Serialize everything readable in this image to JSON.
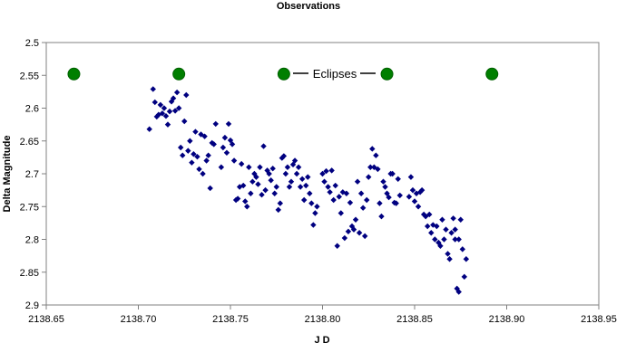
{
  "chart_data": {
    "type": "scatter",
    "title": "Observations",
    "xlabel": "J D",
    "ylabel": "Delta Magnitude",
    "xlim": [
      2138.65,
      2138.95
    ],
    "ylim": [
      2.5,
      2.9
    ],
    "y_inverted": true,
    "x_ticks": [
      "2138.65",
      "2138.70",
      "2138.75",
      "2138.80",
      "2138.85",
      "2138.90",
      "2138.95"
    ],
    "y_ticks": [
      "2.5",
      "2.55",
      "2.6",
      "2.65",
      "2.7",
      "2.75",
      "2.8",
      "2.85",
      "2.9"
    ],
    "annotation": "Eclipses",
    "colors": {
      "observations": "#000080",
      "eclipses": "#007f00",
      "eclipse_outline": "#006000"
    },
    "series": [
      {
        "marker": "diamond",
        "points": [
          [
            2138.706,
            2.632
          ],
          [
            2138.708,
            2.571
          ],
          [
            2138.709,
            2.591
          ],
          [
            2138.71,
            2.613
          ],
          [
            2138.711,
            2.61
          ],
          [
            2138.712,
            2.595
          ],
          [
            2138.713,
            2.608
          ],
          [
            2138.714,
            2.6
          ],
          [
            2138.715,
            2.612
          ],
          [
            2138.716,
            2.625
          ],
          [
            2138.717,
            2.605
          ],
          [
            2138.718,
            2.59
          ],
          [
            2138.719,
            2.585
          ],
          [
            2138.72,
            2.604
          ],
          [
            2138.721,
            2.576
          ],
          [
            2138.722,
            2.6
          ],
          [
            2138.723,
            2.66
          ],
          [
            2138.724,
            2.672
          ],
          [
            2138.725,
            2.62
          ],
          [
            2138.726,
            2.58
          ],
          [
            2138.727,
            2.665
          ],
          [
            2138.728,
            2.65
          ],
          [
            2138.729,
            2.683
          ],
          [
            2138.73,
            2.67
          ],
          [
            2138.731,
            2.636
          ],
          [
            2138.732,
            2.674
          ],
          [
            2138.733,
            2.693
          ],
          [
            2138.734,
            2.64
          ],
          [
            2138.735,
            2.7
          ],
          [
            2138.736,
            2.643
          ],
          [
            2138.737,
            2.68
          ],
          [
            2138.738,
            2.672
          ],
          [
            2138.739,
            2.722
          ],
          [
            2138.74,
            2.653
          ],
          [
            2138.741,
            2.655
          ],
          [
            2138.742,
            2.624
          ],
          [
            2138.745,
            2.69
          ],
          [
            2138.746,
            2.66
          ],
          [
            2138.747,
            2.645
          ],
          [
            2138.748,
            2.668
          ],
          [
            2138.749,
            2.624
          ],
          [
            2138.75,
            2.649
          ],
          [
            2138.751,
            2.655
          ],
          [
            2138.752,
            2.68
          ],
          [
            2138.753,
            2.74
          ],
          [
            2138.754,
            2.738
          ],
          [
            2138.755,
            2.72
          ],
          [
            2138.756,
            2.685
          ],
          [
            2138.757,
            2.718
          ],
          [
            2138.758,
            2.742
          ],
          [
            2138.759,
            2.75
          ],
          [
            2138.76,
            2.69
          ],
          [
            2138.761,
            2.73
          ],
          [
            2138.762,
            2.712
          ],
          [
            2138.763,
            2.7
          ],
          [
            2138.764,
            2.705
          ],
          [
            2138.765,
            2.716
          ],
          [
            2138.766,
            2.69
          ],
          [
            2138.767,
            2.732
          ],
          [
            2138.768,
            2.658
          ],
          [
            2138.769,
            2.725
          ],
          [
            2138.77,
            2.695
          ],
          [
            2138.771,
            2.7
          ],
          [
            2138.772,
            2.71
          ],
          [
            2138.773,
            2.692
          ],
          [
            2138.774,
            2.73
          ],
          [
            2138.775,
            2.72
          ],
          [
            2138.776,
            2.755
          ],
          [
            2138.777,
            2.745
          ],
          [
            2138.778,
            2.676
          ],
          [
            2138.779,
            2.673
          ],
          [
            2138.78,
            2.7
          ],
          [
            2138.781,
            2.69
          ],
          [
            2138.782,
            2.72
          ],
          [
            2138.783,
            2.712
          ],
          [
            2138.784,
            2.686
          ],
          [
            2138.785,
            2.68
          ],
          [
            2138.786,
            2.7
          ],
          [
            2138.787,
            2.69
          ],
          [
            2138.788,
            2.72
          ],
          [
            2138.789,
            2.708
          ],
          [
            2138.79,
            2.74
          ],
          [
            2138.791,
            2.718
          ],
          [
            2138.792,
            2.705
          ],
          [
            2138.793,
            2.73
          ],
          [
            2138.794,
            2.745
          ],
          [
            2138.795,
            2.778
          ],
          [
            2138.796,
            2.76
          ],
          [
            2138.797,
            2.75
          ],
          [
            2138.8,
            2.7
          ],
          [
            2138.801,
            2.712
          ],
          [
            2138.802,
            2.696
          ],
          [
            2138.803,
            2.72
          ],
          [
            2138.804,
            2.728
          ],
          [
            2138.805,
            2.695
          ],
          [
            2138.806,
            2.74
          ],
          [
            2138.807,
            2.718
          ],
          [
            2138.808,
            2.81
          ],
          [
            2138.809,
            2.735
          ],
          [
            2138.81,
            2.76
          ],
          [
            2138.811,
            2.728
          ],
          [
            2138.812,
            2.798
          ],
          [
            2138.813,
            2.73
          ],
          [
            2138.814,
            2.788
          ],
          [
            2138.815,
            2.744
          ],
          [
            2138.816,
            2.78
          ],
          [
            2138.817,
            2.785
          ],
          [
            2138.818,
            2.77
          ],
          [
            2138.819,
            2.712
          ],
          [
            2138.82,
            2.79
          ],
          [
            2138.821,
            2.73
          ],
          [
            2138.822,
            2.752
          ],
          [
            2138.823,
            2.795
          ],
          [
            2138.824,
            2.74
          ],
          [
            2138.825,
            2.705
          ],
          [
            2138.826,
            2.69
          ],
          [
            2138.827,
            2.662
          ],
          [
            2138.828,
            2.69
          ],
          [
            2138.829,
            2.672
          ],
          [
            2138.83,
            2.693
          ],
          [
            2138.831,
            2.745
          ],
          [
            2138.832,
            2.765
          ],
          [
            2138.833,
            2.712
          ],
          [
            2138.834,
            2.72
          ],
          [
            2138.835,
            2.73
          ],
          [
            2138.836,
            2.736
          ],
          [
            2138.837,
            2.7
          ],
          [
            2138.838,
            2.7
          ],
          [
            2138.839,
            2.744
          ],
          [
            2138.84,
            2.745
          ],
          [
            2138.841,
            2.708
          ],
          [
            2138.842,
            2.733
          ],
          [
            2138.847,
            2.735
          ],
          [
            2138.848,
            2.705
          ],
          [
            2138.849,
            2.725
          ],
          [
            2138.85,
            2.742
          ],
          [
            2138.851,
            2.73
          ],
          [
            2138.852,
            2.75
          ],
          [
            2138.853,
            2.728
          ],
          [
            2138.854,
            2.725
          ],
          [
            2138.855,
            2.762
          ],
          [
            2138.856,
            2.765
          ],
          [
            2138.857,
            2.78
          ],
          [
            2138.858,
            2.762
          ],
          [
            2138.859,
            2.79
          ],
          [
            2138.86,
            2.778
          ],
          [
            2138.861,
            2.8
          ],
          [
            2138.862,
            2.78
          ],
          [
            2138.863,
            2.805
          ],
          [
            2138.864,
            2.81
          ],
          [
            2138.865,
            2.77
          ],
          [
            2138.866,
            2.8
          ],
          [
            2138.867,
            2.785
          ],
          [
            2138.868,
            2.822
          ],
          [
            2138.869,
            2.83
          ],
          [
            2138.87,
            2.79
          ],
          [
            2138.871,
            2.768
          ],
          [
            2138.872,
            2.8
          ],
          [
            2138.873,
            2.875
          ],
          [
            2138.874,
            2.88
          ],
          [
            2138.875,
            2.77
          ],
          [
            2138.876,
            2.815
          ],
          [
            2138.877,
            2.857
          ],
          [
            2138.878,
            2.83
          ],
          [
            2138.872,
            2.785
          ],
          [
            2138.874,
            2.8
          ]
        ]
      },
      {
        "marker": "circle",
        "points": [
          [
            2138.665,
            2.548
          ],
          [
            2138.722,
            2.548
          ],
          [
            2138.779,
            2.548
          ],
          [
            2138.835,
            2.548
          ],
          [
            2138.892,
            2.548
          ]
        ]
      }
    ]
  }
}
